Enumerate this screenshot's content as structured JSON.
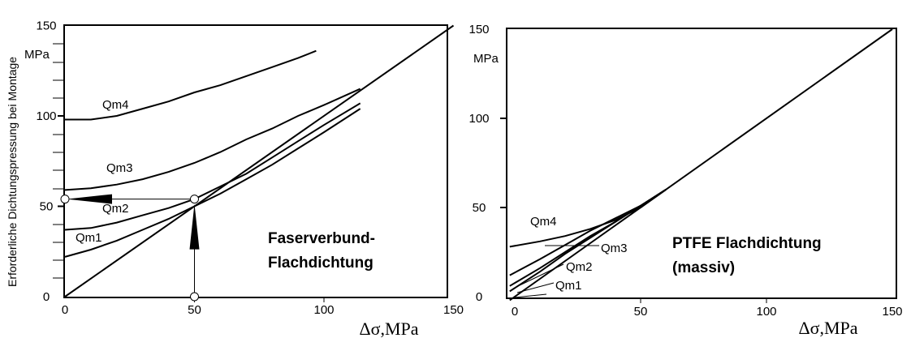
{
  "y_axis_label": "Erforderliche Dichtungspressung bei Montage",
  "chart_data": [
    {
      "type": "line",
      "title": "Faserverbund-Flachdichtung",
      "title_lines": [
        "Faserverbund-",
        "Flachdichtung"
      ],
      "xlabel": "Δσ,MPa",
      "y_unit": "MPa",
      "xlim": [
        0,
        150
      ],
      "ylim": [
        0,
        150
      ],
      "xticks": [
        "0",
        "50",
        "100",
        "150"
      ],
      "yticks": [
        "0",
        "50",
        "100",
        "150"
      ],
      "series": [
        {
          "name": "Qm4",
          "x": [
            0,
            10,
            20,
            30,
            40,
            50,
            60,
            70,
            80,
            90,
            97
          ],
          "y": [
            98,
            98,
            100,
            104,
            108,
            113,
            117,
            122,
            127,
            132,
            136
          ]
        },
        {
          "name": "Qm3",
          "x": [
            0,
            10,
            20,
            30,
            40,
            50,
            60,
            70,
            80,
            90,
            100,
            114
          ],
          "y": [
            59,
            60,
            62,
            65,
            69,
            74,
            80,
            87,
            93,
            100,
            106,
            115
          ]
        },
        {
          "name": "Qm2",
          "x": [
            0,
            10,
            20,
            30,
            40,
            50,
            60,
            70,
            80,
            90,
            100,
            114
          ],
          "y": [
            37,
            38,
            41,
            45,
            49,
            54,
            61,
            68,
            77,
            86,
            95,
            107
          ]
        },
        {
          "name": "Qm1",
          "x": [
            0,
            10,
            20,
            30,
            40,
            50,
            60,
            70,
            80,
            90,
            100,
            114
          ],
          "y": [
            22,
            26,
            31,
            37,
            43,
            50,
            57,
            65,
            73,
            82,
            91,
            104
          ]
        },
        {
          "name": "",
          "x": [
            0,
            150
          ],
          "y": [
            0,
            150
          ]
        }
      ],
      "annotation_points": [
        {
          "x": 0,
          "y": 54
        },
        {
          "x": 50,
          "y": 54
        },
        {
          "x": 50,
          "y": 0
        }
      ]
    },
    {
      "type": "line",
      "title": "PTFE  Flachdichtung (massiv)",
      "title_lines": [
        "PTFE  Flachdichtung",
        "(massiv)"
      ],
      "xlabel": "Δσ,MPa",
      "y_unit": "MPa",
      "xlim": [
        0,
        150
      ],
      "ylim": [
        0,
        150
      ],
      "xticks": [
        "0",
        "50",
        "100",
        "150"
      ],
      "yticks": [
        "0",
        "50",
        "100",
        "150"
      ],
      "series": [
        {
          "name": "Qm4",
          "x": [
            -2,
            10,
            20,
            30,
            40,
            50,
            60
          ],
          "y": [
            28,
            31,
            34,
            38,
            43,
            50,
            60
          ]
        },
        {
          "name": "Qm3",
          "x": [
            -2,
            10,
            20,
            30,
            40,
            50,
            60
          ],
          "y": [
            12,
            21,
            29,
            37,
            44,
            51,
            60
          ]
        },
        {
          "name": "Qm2",
          "x": [
            -2,
            10,
            20,
            30,
            40,
            50,
            60
          ],
          "y": [
            6,
            16,
            25,
            34,
            42,
            51,
            60
          ]
        },
        {
          "name": "Qm1",
          "x": [
            -2,
            10,
            20,
            30,
            40,
            50,
            60
          ],
          "y": [
            3,
            14,
            24,
            33,
            42,
            51,
            60
          ]
        },
        {
          "name": "",
          "x": [
            -2,
            150
          ],
          "y": [
            -2,
            150
          ]
        }
      ]
    }
  ]
}
